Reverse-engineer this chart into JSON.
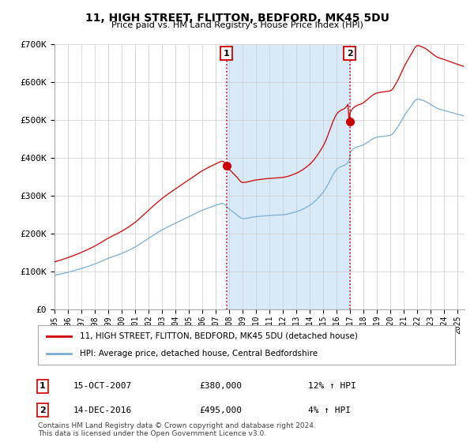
{
  "title": "11, HIGH STREET, FLITTON, BEDFORD, MK45 5DU",
  "subtitle": "Price paid vs. HM Land Registry's House Price Index (HPI)",
  "legend_line1": "11, HIGH STREET, FLITTON, BEDFORD, MK45 5DU (detached house)",
  "legend_line2": "HPI: Average price, detached house, Central Bedfordshire",
  "footer1": "Contains HM Land Registry data © Crown copyright and database right 2024.",
  "footer2": "This data is licensed under the Open Government Licence v3.0.",
  "annotation1_label": "1",
  "annotation1_date": "15-OCT-2007",
  "annotation1_price": "£380,000",
  "annotation1_hpi": "12% ↑ HPI",
  "annotation2_label": "2",
  "annotation2_date": "14-DEC-2016",
  "annotation2_price": "£495,000",
  "annotation2_hpi": "4% ↑ HPI",
  "ylim": [
    0,
    700000
  ],
  "yticks": [
    0,
    100000,
    200000,
    300000,
    400000,
    500000,
    600000,
    700000
  ],
  "ytick_labels": [
    "£0",
    "£100K",
    "£200K",
    "£300K",
    "£400K",
    "£500K",
    "£600K",
    "£700K"
  ],
  "price_color": "#cc0000",
  "hpi_color": "#7aadd4",
  "shade_color": "#d8eaf7",
  "vline_color": "#cc0000",
  "grid_color": "#cccccc",
  "background_color": "#ffffff",
  "sale1_x": 2007.79,
  "sale1_y": 380000,
  "sale2_x": 2016.95,
  "sale2_y": 495000,
  "xlim_left": 1995.0,
  "xlim_right": 2025.5
}
